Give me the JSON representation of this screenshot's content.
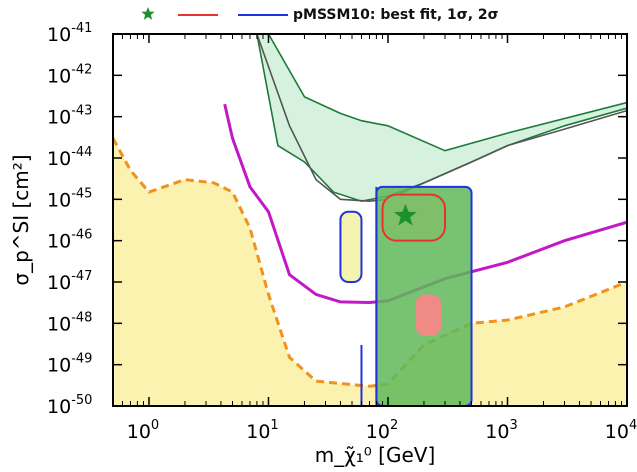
{
  "chart_data": {
    "type": "line",
    "title": "",
    "xlabel": "m_χ̃₁⁰ [GeV]",
    "ylabel": "σ_p^SI [cm²]",
    "x_scale": "log",
    "y_scale": "log",
    "xlim": [
      0.5,
      10000
    ],
    "ylim": [
      1e-50,
      1e-41
    ],
    "x_ticks": [
      {
        "value": 1,
        "base": "10",
        "exp": "0"
      },
      {
        "value": 10,
        "base": "10",
        "exp": "1"
      },
      {
        "value": 100,
        "base": "10",
        "exp": "2"
      },
      {
        "value": 1000,
        "base": "10",
        "exp": "3"
      },
      {
        "value": 10000,
        "base": "10",
        "exp": "4"
      }
    ],
    "y_ticks": [
      {
        "value": 1e-41,
        "base": "10",
        "exp": "-41"
      },
      {
        "value": 1e-42,
        "base": "10",
        "exp": "-42"
      },
      {
        "value": 1e-43,
        "base": "10",
        "exp": "-43"
      },
      {
        "value": 1e-44,
        "base": "10",
        "exp": "-44"
      },
      {
        "value": 1e-45,
        "base": "10",
        "exp": "-45"
      },
      {
        "value": 1e-46,
        "base": "10",
        "exp": "-46"
      },
      {
        "value": 1e-47,
        "base": "10",
        "exp": "-47"
      },
      {
        "value": 1e-48,
        "base": "10",
        "exp": "-48"
      },
      {
        "value": 1e-49,
        "base": "10",
        "exp": "-49"
      },
      {
        "value": 1e-50,
        "base": "10",
        "exp": "-50"
      }
    ],
    "legend": {
      "placement": "top",
      "text": "pMSSM10: best fit, 1σ, 2σ",
      "markers": [
        {
          "kind": "star",
          "color": "#1e8f2e"
        },
        {
          "kind": "line",
          "color": "#e8322d"
        },
        {
          "kind": "line",
          "color": "#2233dd"
        }
      ]
    },
    "best_fit": {
      "x": 140,
      "y": 4e-46,
      "color": "#1e8f2e"
    },
    "series": [
      {
        "style": "filled-band",
        "color": "#1e7a3a",
        "fill": "#d6f2df",
        "lower": [
          [
            8,
            1e-41
          ],
          [
            12,
            2e-44
          ],
          [
            20,
            8e-45
          ],
          [
            35,
            1.5e-45
          ],
          [
            60,
            9e-46
          ],
          [
            100,
            1.2e-45
          ],
          [
            200,
            2.5e-45
          ],
          [
            500,
            8e-45
          ],
          [
            1000,
            2e-44
          ],
          [
            3000,
            6e-44
          ],
          [
            10000,
            1.6e-43
          ]
        ],
        "upper": [
          [
            10,
            1e-41
          ],
          [
            20,
            3e-43
          ],
          [
            40,
            1.2e-43
          ],
          [
            60,
            8e-44
          ],
          [
            100,
            6e-44
          ],
          [
            300,
            1.5e-44
          ],
          [
            1000,
            4e-44
          ],
          [
            10000,
            2.2e-43
          ]
        ]
      },
      {
        "style": "solid",
        "color": "#555555",
        "points": [
          [
            8,
            1e-41
          ],
          [
            15,
            6e-44
          ],
          [
            25,
            3e-45
          ],
          [
            40,
            1e-45
          ],
          [
            70,
            9e-46
          ],
          [
            100,
            1e-45
          ],
          [
            200,
            2.5e-45
          ],
          [
            500,
            8e-45
          ],
          [
            1000,
            2e-44
          ],
          [
            3000,
            5e-44
          ],
          [
            10000,
            1.4e-43
          ]
        ]
      },
      {
        "style": "solid",
        "color": "#c318c8",
        "points": [
          [
            4.3,
            2e-43
          ],
          [
            5,
            3e-44
          ],
          [
            7,
            2e-45
          ],
          [
            10,
            5e-46
          ],
          [
            15,
            1.5e-47
          ],
          [
            25,
            5e-48
          ],
          [
            40,
            3.3e-48
          ],
          [
            70,
            3.2e-48
          ],
          [
            100,
            3.5e-48
          ],
          [
            300,
            1.2e-47
          ],
          [
            1000,
            3e-47
          ],
          [
            3000,
            1e-46
          ],
          [
            10000,
            2.8e-46
          ]
        ]
      },
      {
        "style": "dashed",
        "color": "#f0921c",
        "fill": "#fbf2b0",
        "points": [
          [
            0.5,
            3e-44
          ],
          [
            0.7,
            5e-45
          ],
          [
            1,
            1.5e-45
          ],
          [
            2,
            3e-45
          ],
          [
            3.5,
            2.5e-45
          ],
          [
            5,
            1.5e-45
          ],
          [
            7,
            2e-46
          ],
          [
            10,
            5e-48
          ],
          [
            15,
            1.5e-49
          ],
          [
            25,
            4e-50
          ],
          [
            40,
            3.5e-50
          ],
          [
            70,
            3e-50
          ],
          [
            100,
            3.4e-50
          ],
          [
            200,
            3e-49
          ],
          [
            500,
            1e-48
          ],
          [
            1000,
            1.2e-48
          ],
          [
            3000,
            2.5e-48
          ],
          [
            10000,
            1e-47
          ]
        ]
      }
    ],
    "regions": [
      {
        "kind": "2sigma",
        "color": "#2233dd",
        "x_range": [
          80,
          500
        ],
        "y_range": [
          1e-50,
          2e-45
        ]
      },
      {
        "kind": "1sigma",
        "color": "#e8322d",
        "x_range": [
          90,
          300
        ],
        "y_range": [
          5e-48,
          1.3e-45
        ]
      }
    ]
  }
}
